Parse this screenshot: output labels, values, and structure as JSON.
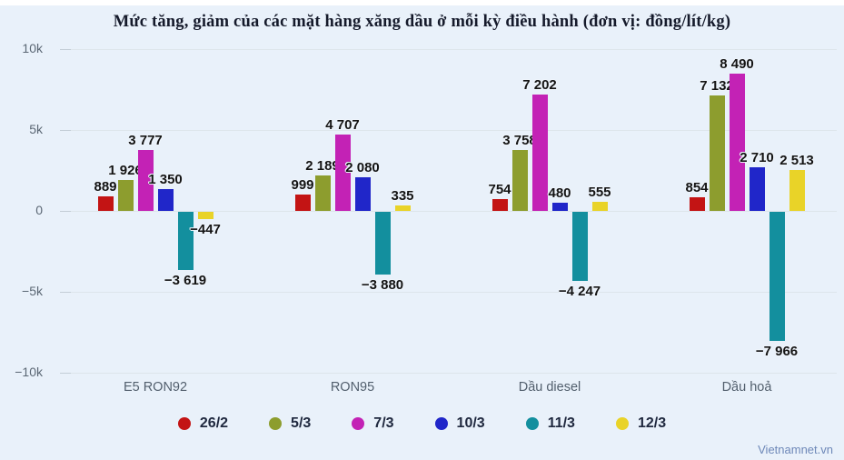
{
  "watermark": "Vietnamnet.vn",
  "chart_data": {
    "type": "bar",
    "title": "Mức tăng, giảm của các mặt hàng xăng dầu ở mỗi kỳ điều hành (đơn vị: đồng/lít/kg)",
    "categories": [
      "E5 RON92",
      "RON95",
      "Dầu diesel",
      "Dầu hoả"
    ],
    "series": [
      {
        "name": "26/2",
        "color": "#c31414",
        "values": [
          889,
          999,
          754,
          854
        ]
      },
      {
        "name": "5/3",
        "color": "#8d9d2e",
        "values": [
          1926,
          2189,
          3758,
          7132
        ]
      },
      {
        "name": "7/3",
        "color": "#c322b5",
        "values": [
          3777,
          4707,
          7202,
          8490
        ]
      },
      {
        "name": "10/3",
        "color": "#2026c9",
        "values": [
          1350,
          2080,
          480,
          2710
        ]
      },
      {
        "name": "11/3",
        "color": "#138f9e",
        "values": [
          -3619,
          -3880,
          -4247,
          -7966
        ]
      },
      {
        "name": "12/3",
        "color": "#e9d328",
        "values": [
          -447,
          335,
          555,
          2513
        ]
      }
    ],
    "y_ticks": [
      {
        "label": "10k",
        "value": 10000
      },
      {
        "label": "5k",
        "value": 5000
      },
      {
        "label": "0",
        "value": 0
      },
      {
        "label": "−5k",
        "value": -5000
      },
      {
        "label": "−10k",
        "value": -10000
      }
    ],
    "ylim": [
      -10000,
      10000
    ],
    "grid": true,
    "legend_position": "bottom",
    "value_labels": true,
    "background_color": "#e9f1fa"
  }
}
